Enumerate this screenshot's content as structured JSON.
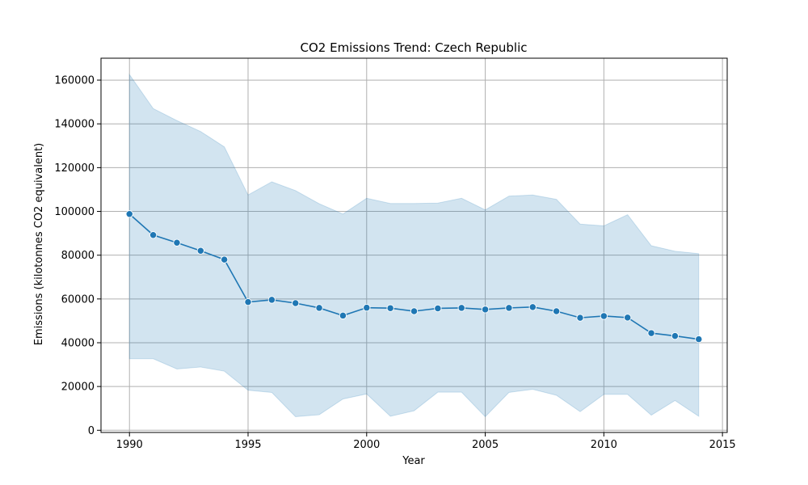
{
  "chart_data": {
    "type": "line",
    "title": "CO2 Emissions Trend: Czech Republic",
    "xlabel": "Year",
    "ylabel": "Emissions (kilotonnes CO2 equivalent)",
    "xlim": [
      1988.8,
      2015.2
    ],
    "ylim": [
      -1000,
      170000
    ],
    "xticks": [
      1990,
      1995,
      2000,
      2005,
      2010,
      2015
    ],
    "yticks": [
      0,
      20000,
      40000,
      60000,
      80000,
      100000,
      120000,
      140000,
      160000
    ],
    "grid": true,
    "series": [
      {
        "x": [
          1990,
          1991,
          1992,
          1993,
          1994,
          1995,
          1996,
          1997,
          1998,
          1999,
          2000,
          2001,
          2002,
          2003,
          2004,
          2005,
          2006,
          2007,
          2008,
          2009,
          2010,
          2011,
          2012,
          2013,
          2014
        ],
        "y": [
          98800,
          89200,
          85700,
          82000,
          78000,
          58600,
          59600,
          58100,
          55900,
          52400,
          56000,
          55800,
          54400,
          55700,
          55900,
          55200,
          55900,
          56300,
          54400,
          51400,
          52200,
          51500,
          44400,
          43100,
          41600
        ],
        "upper": [
          162500,
          147000,
          141500,
          136500,
          129500,
          107500,
          113500,
          109500,
          103500,
          98800,
          106000,
          103600,
          103600,
          103800,
          106000,
          100700,
          107000,
          107500,
          105500,
          94200,
          93400,
          98500,
          84300,
          81800,
          80700
        ],
        "lower": [
          32700,
          32700,
          28000,
          28900,
          27000,
          18300,
          17300,
          6200,
          7100,
          14300,
          16600,
          6400,
          8900,
          17400,
          17400,
          6200,
          17300,
          18700,
          16000,
          8500,
          16400,
          16400,
          6900,
          13600,
          6400
        ],
        "color": "#1f77b4",
        "band_color": "#1f77b4"
      }
    ]
  }
}
